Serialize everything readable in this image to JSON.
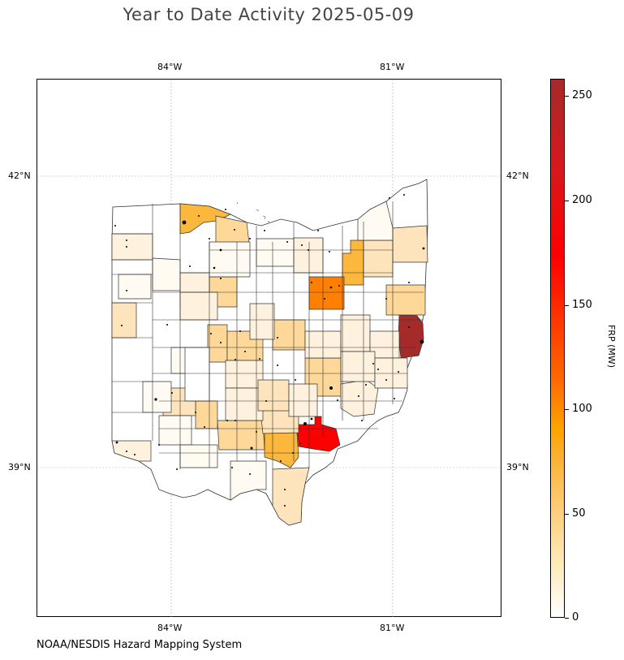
{
  "title": "Year to Date Activity 2025-05-09",
  "credit": "NOAA/NESDIS Hazard Mapping System",
  "axes": {
    "lon_ticks": [
      "84°W",
      "81°W"
    ],
    "lat_ticks": [
      "42°N",
      "39°N"
    ]
  },
  "colorbar": {
    "label": "FRP (MW)",
    "ticks": [
      "0",
      "50",
      "100",
      "150",
      "200",
      "250"
    ],
    "range": [
      0,
      258
    ],
    "colors": [
      "#ffffff",
      "#ffeab8",
      "#fecf7e",
      "#fcb12e",
      "#ffa400",
      "#ff6a00",
      "#ff0000",
      "#a52a2a"
    ]
  },
  "map": {
    "region": "Ohio counties",
    "highlighted_counties": [
      {
        "color": "#a52a2a",
        "frp": 258
      },
      {
        "color": "#ff0000",
        "frp": 175
      },
      {
        "color": "#ff8000",
        "frp": 110
      },
      {
        "color": "#fcb83c",
        "frp": 65
      },
      {
        "color": "#fdd899",
        "frp": 35
      },
      {
        "color": "#fde4bd",
        "frp": 22
      },
      {
        "color": "#fef1dd",
        "frp": 10
      },
      {
        "color": "#fffaf2",
        "frp": 3
      }
    ]
  }
}
